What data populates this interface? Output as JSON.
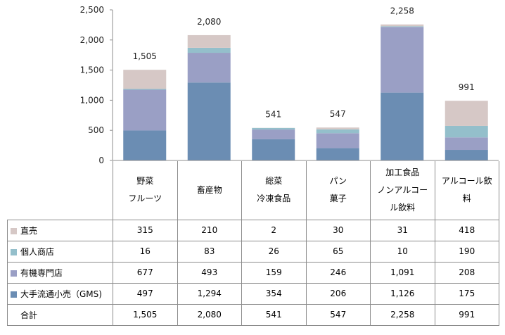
{
  "chart_data": {
    "type": "bar",
    "stacked": true,
    "categories": [
      [
        "野菜",
        "フルーツ"
      ],
      [
        "畜産物"
      ],
      [
        "総菜",
        "冷凍食品"
      ],
      [
        "パン",
        "菓子"
      ],
      [
        "加工食品",
        "ノンアルコー",
        "ル飲料"
      ],
      [
        "アルコール飲",
        "料"
      ]
    ],
    "series": [
      {
        "name": "大手流通小売（GMS)",
        "color": "#6b8db3",
        "values": [
          497,
          1294,
          354,
          206,
          1126,
          175
        ]
      },
      {
        "name": "有機専門店",
        "color": "#9a9fc5",
        "values": [
          677,
          493,
          159,
          246,
          1091,
          208
        ]
      },
      {
        "name": "個人商店",
        "color": "#94bfcb",
        "values": [
          16,
          83,
          26,
          65,
          10,
          190
        ]
      },
      {
        "name": "直売",
        "color": "#d6c8c6",
        "values": [
          315,
          210,
          2,
          30,
          31,
          418
        ]
      }
    ],
    "totals": [
      1505,
      2080,
      541,
      547,
      2258,
      991
    ],
    "total_labels": [
      "1,505",
      "2,080",
      "541",
      "547",
      "2,258",
      "991"
    ],
    "ylim": [
      0,
      2500
    ],
    "yticks": [
      "0",
      "500",
      "1,000",
      "1,500",
      "2,000",
      "2,500"
    ],
    "ytick_values": [
      0,
      500,
      1000,
      1500,
      2000,
      2500
    ],
    "grid": false,
    "legend": "data-table"
  },
  "table": {
    "rows": [
      {
        "label": "直売",
        "color": "#d6c8c6",
        "values": [
          "315",
          "210",
          "2",
          "30",
          "31",
          "418"
        ]
      },
      {
        "label": "個人商店",
        "color": "#94bfcb",
        "values": [
          "16",
          "83",
          "26",
          "65",
          "10",
          "190"
        ]
      },
      {
        "label": "有機専門店",
        "color": "#9a9fc5",
        "values": [
          "677",
          "493",
          "159",
          "246",
          "1,091",
          "208"
        ]
      },
      {
        "label": "大手流通小売（GMS)",
        "color": "#6b8db3",
        "values": [
          "497",
          "1,294",
          "354",
          "206",
          "1,126",
          "175"
        ]
      },
      {
        "label": "合計",
        "color": "",
        "values": [
          "1,505",
          "2,080",
          "541",
          "547",
          "2,258",
          "991"
        ]
      }
    ]
  }
}
